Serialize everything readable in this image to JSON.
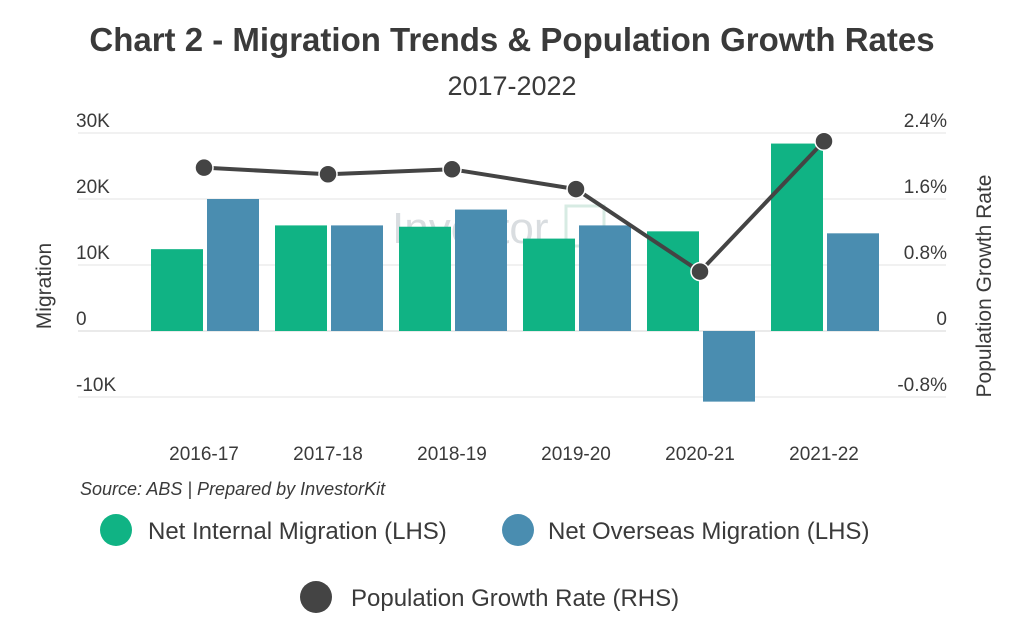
{
  "chart_data": {
    "type": "bar",
    "title": "Chart 2 - Migration Trends & Population Growth Rates",
    "subtitle": "2017-2022",
    "categories": [
      "2016-17",
      "2017-18",
      "2018-19",
      "2019-20",
      "2020-21",
      "2021-22"
    ],
    "series": [
      {
        "name": "Net Internal Migration (LHS)",
        "kind": "bar",
        "axis": "left",
        "color": "#10b384",
        "values": [
          12400,
          16000,
          15800,
          14000,
          15100,
          28400
        ]
      },
      {
        "name": "Net Overseas Migration (LHS)",
        "kind": "bar",
        "axis": "left",
        "color": "#4a8db0",
        "values": [
          20000,
          16000,
          18400,
          16000,
          -10700,
          14800
        ]
      },
      {
        "name": "Population Growth Rate (RHS)",
        "kind": "line",
        "axis": "right",
        "color": "#444444",
        "values": [
          1.98,
          1.9,
          1.96,
          1.72,
          0.72,
          2.3
        ]
      }
    ],
    "y_left": {
      "label": "Migration",
      "min": -10000,
      "max": 30000,
      "ticks": [
        30000,
        20000,
        10000,
        0,
        -10000
      ],
      "tick_labels": [
        "30K",
        "20K",
        "10K",
        "0",
        "-10K"
      ]
    },
    "y_right": {
      "label": "Population Growth Rate",
      "min": -0.8,
      "max": 2.4,
      "ticks": [
        2.4,
        1.6,
        0.8,
        0,
        -0.8
      ],
      "tick_labels": [
        "2.4%",
        "1.6%",
        "0.8%",
        "0",
        "-0.8%"
      ]
    },
    "grid": true,
    "legend_position": "bottom",
    "source_note": "Source: ABS | Prepared by InvestorKit",
    "watermark": "Investor"
  }
}
